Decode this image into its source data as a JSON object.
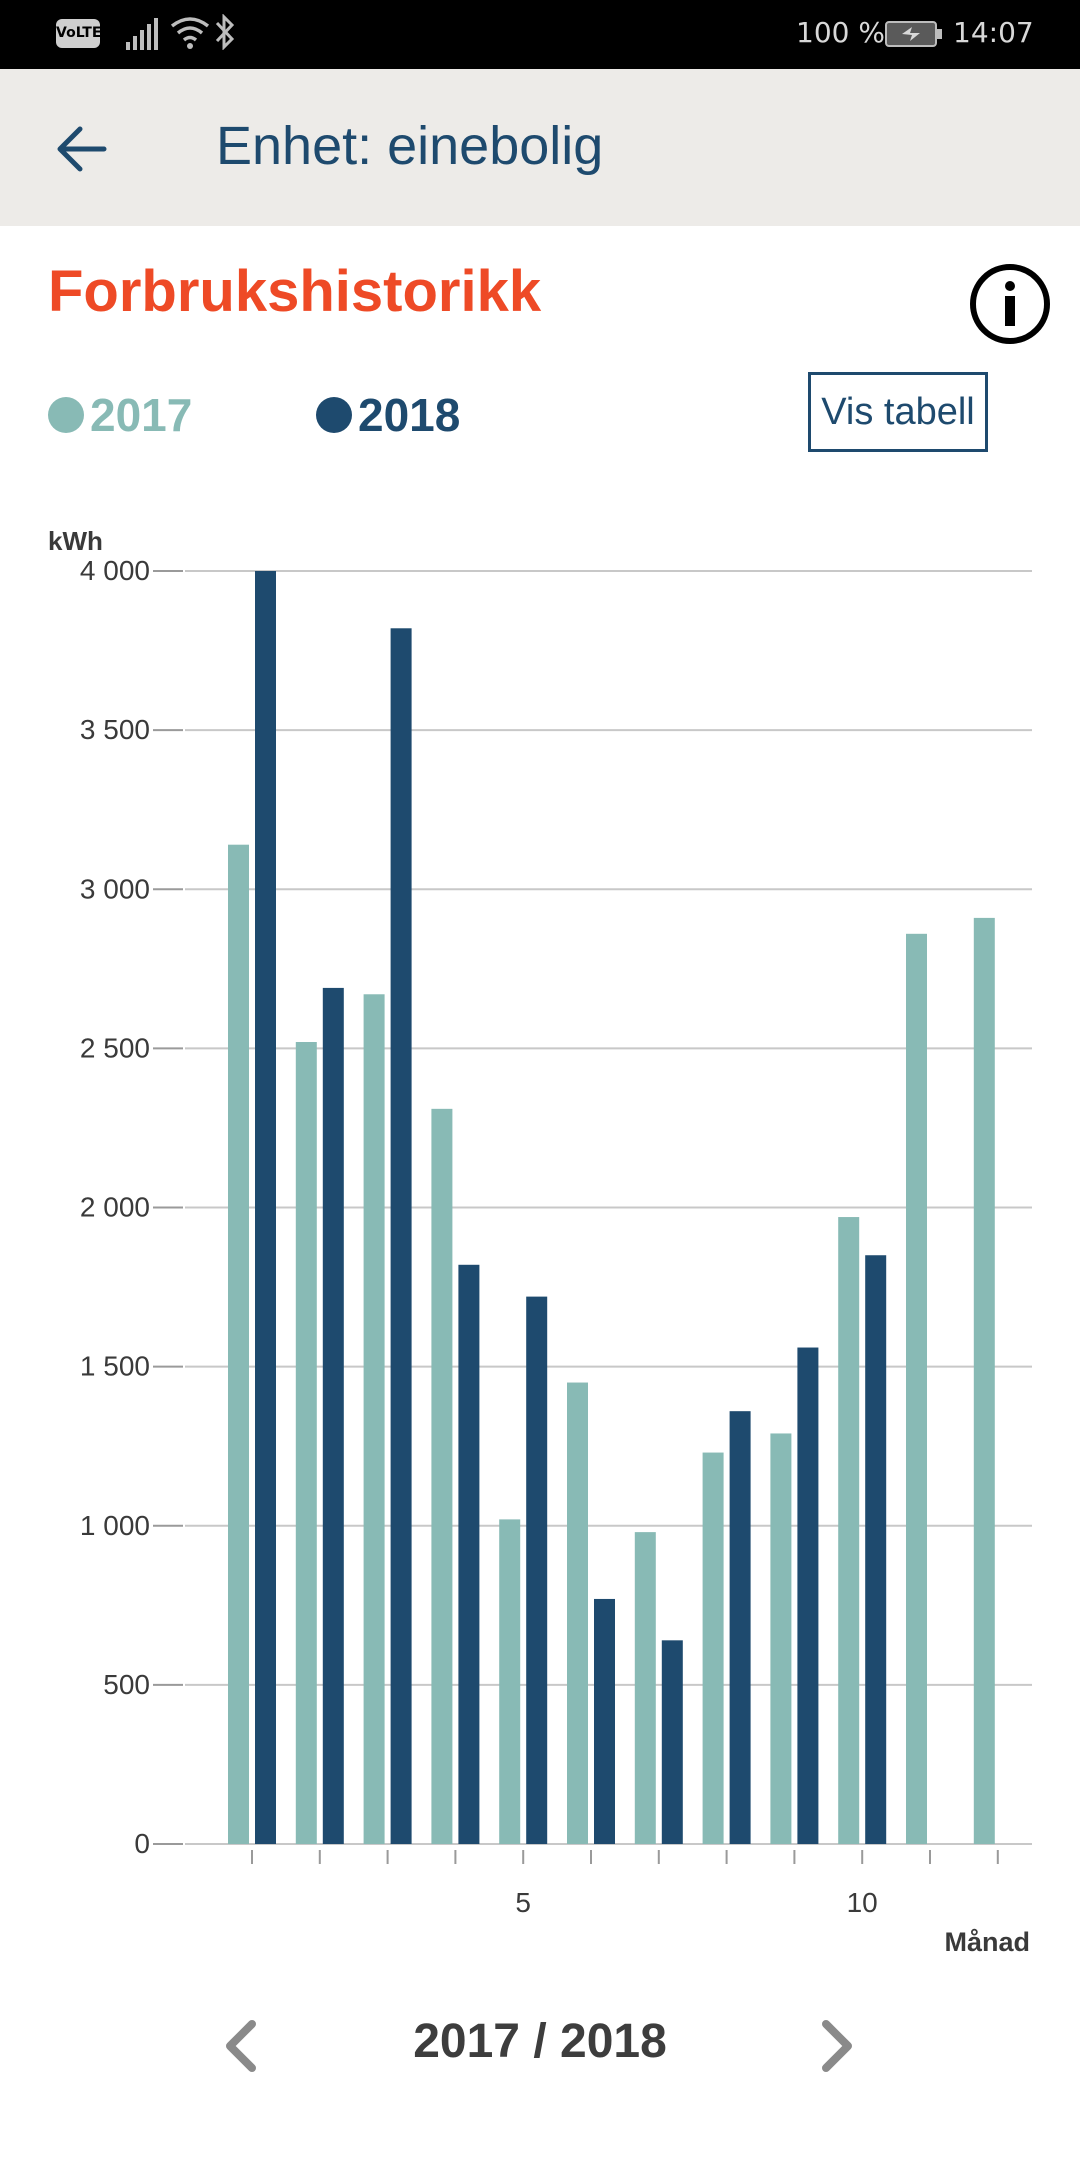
{
  "status_bar": {
    "volte": "VoLTE",
    "battery_percent": "100 %",
    "time": "14:07"
  },
  "app_bar": {
    "title": "Enhet: einebolig"
  },
  "header": {
    "title": "Forbrukshistorikk",
    "table_button": "Vis tabell"
  },
  "colors": {
    "accent": "#ee4a26",
    "primary": "#1e4a6e",
    "series_2017": "#88bab5",
    "series_2018": "#1e4a6e"
  },
  "chart_data": {
    "type": "bar",
    "ylabel": "kWh",
    "xlabel": "Månad",
    "ylim": [
      0,
      4000
    ],
    "y_ticks": [
      0,
      500,
      1000,
      1500,
      2000,
      2500,
      3000,
      3500,
      4000
    ],
    "y_tick_labels": [
      "0",
      "500",
      "1 000",
      "1 500",
      "2 000",
      "2 500",
      "3 000",
      "3 500",
      "4 000"
    ],
    "categories": [
      1,
      2,
      3,
      4,
      5,
      6,
      7,
      8,
      9,
      10,
      11,
      12
    ],
    "x_tick_labels": [
      {
        "month": 5,
        "label": "5"
      },
      {
        "month": 10,
        "label": "10"
      }
    ],
    "grid": true,
    "legend": "top-left",
    "series": [
      {
        "name": "2017",
        "values": [
          3140,
          2520,
          2670,
          2310,
          1020,
          1450,
          980,
          1230,
          1290,
          1970,
          2860,
          2910
        ]
      },
      {
        "name": "2018",
        "values": [
          4000,
          2690,
          3820,
          1820,
          1720,
          770,
          640,
          1360,
          1560,
          1850,
          null,
          null
        ]
      }
    ]
  },
  "footer": {
    "period": "2017 / 2018"
  }
}
